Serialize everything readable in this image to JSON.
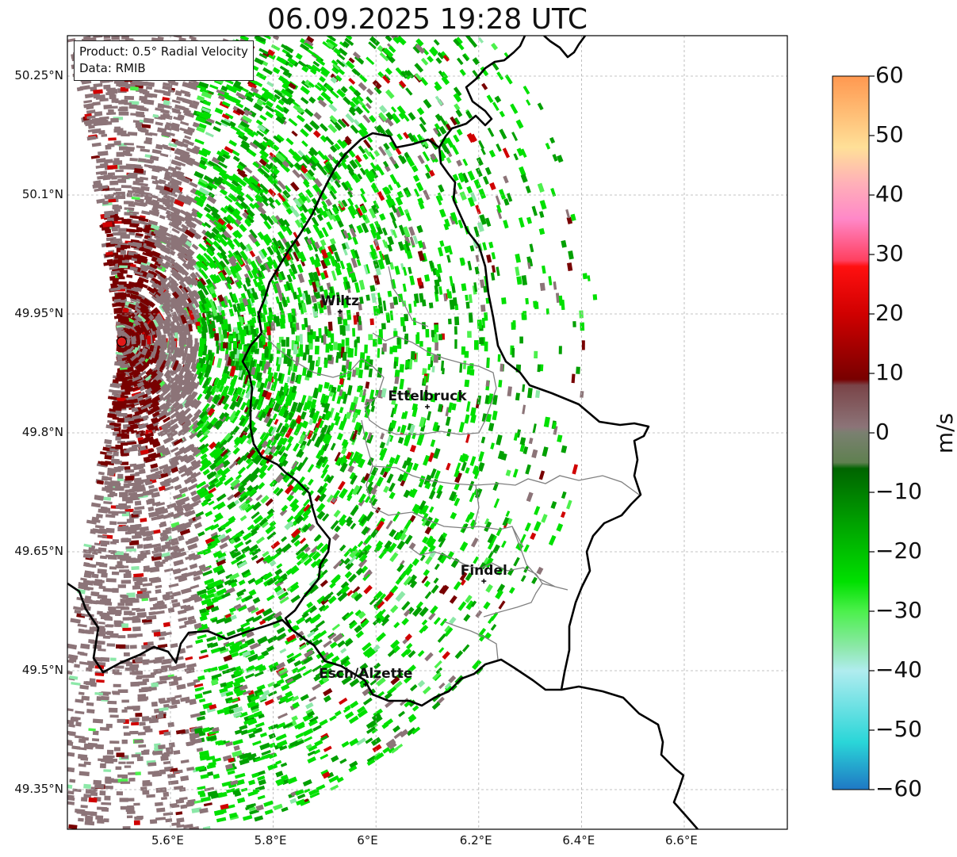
{
  "title": "06.09.2025 19:28 UTC",
  "info": {
    "line1": "Product: 0.5° Radial Velocity",
    "line2": "Data: RMIB"
  },
  "map": {
    "lon_range": [
      5.4,
      6.8
    ],
    "lat_range": [
      49.3,
      50.3
    ],
    "lon_ticks": [
      {
        "value": 5.6,
        "label": "5.6°E"
      },
      {
        "value": 5.8,
        "label": "5.8°E"
      },
      {
        "value": 6.0,
        "label": "6°E"
      },
      {
        "value": 6.2,
        "label": "6.2°E"
      },
      {
        "value": 6.4,
        "label": "6.4°E"
      },
      {
        "value": 6.6,
        "label": "6.6°E"
      }
    ],
    "lat_ticks": [
      {
        "value": 50.25,
        "label": "50.25°N"
      },
      {
        "value": 50.1,
        "label": "50.1°N"
      },
      {
        "value": 49.95,
        "label": "49.95°N"
      },
      {
        "value": 49.8,
        "label": "49.8°N"
      },
      {
        "value": 49.65,
        "label": "49.65°N"
      },
      {
        "value": 49.5,
        "label": "49.5°N"
      },
      {
        "value": 49.35,
        "label": "49.35°N"
      }
    ],
    "grid": true,
    "radar_site": {
      "lon": 5.505,
      "lat": 49.915
    },
    "cities": [
      {
        "name": "Wiltz",
        "lon": 5.93,
        "lat": 49.965
      },
      {
        "name": "Ettelbruck",
        "lon": 6.1,
        "lat": 49.845
      },
      {
        "name": "Findel",
        "lon": 6.21,
        "lat": 49.625
      },
      {
        "name": "Esch/Alzette",
        "lon": 5.98,
        "lat": 49.495
      }
    ]
  },
  "colorbar": {
    "min": -60,
    "max": 60,
    "unit": "m/s",
    "ticks": [
      {
        "value": 60,
        "label": "60"
      },
      {
        "value": 50,
        "label": "50"
      },
      {
        "value": 40,
        "label": "40"
      },
      {
        "value": 30,
        "label": "30"
      },
      {
        "value": 20,
        "label": "20"
      },
      {
        "value": 10,
        "label": "10"
      },
      {
        "value": 0,
        "label": "0"
      },
      {
        "value": -10,
        "label": "−10"
      },
      {
        "value": -20,
        "label": "−20"
      },
      {
        "value": -30,
        "label": "−30"
      },
      {
        "value": -40,
        "label": "−40"
      },
      {
        "value": -50,
        "label": "−50"
      },
      {
        "value": -60,
        "label": "−60"
      }
    ],
    "stops": [
      {
        "value": -60,
        "color": "#1f78c4"
      },
      {
        "value": -52,
        "color": "#2ad6d8"
      },
      {
        "value": -40,
        "color": "#b0ecef"
      },
      {
        "value": -36,
        "color": "#8ce8a8"
      },
      {
        "value": -30,
        "color": "#4cf04c"
      },
      {
        "value": -25,
        "color": "#00e000"
      },
      {
        "value": -15,
        "color": "#00a000"
      },
      {
        "value": -6,
        "color": "#006400"
      },
      {
        "value": -5,
        "color": "#5f8050"
      },
      {
        "value": 0,
        "color": "#7a8070"
      },
      {
        "value": 1,
        "color": "#8c7478"
      },
      {
        "value": 8,
        "color": "#7a4448"
      },
      {
        "value": 9,
        "color": "#780000"
      },
      {
        "value": 20,
        "color": "#d00000"
      },
      {
        "value": 28,
        "color": "#ff1010"
      },
      {
        "value": 29,
        "color": "#ff4060"
      },
      {
        "value": 36,
        "color": "#ff88c8"
      },
      {
        "value": 42,
        "color": "#ffb0b8"
      },
      {
        "value": 48,
        "color": "#ffe098"
      },
      {
        "value": 60,
        "color": "#ff9850"
      }
    ]
  }
}
